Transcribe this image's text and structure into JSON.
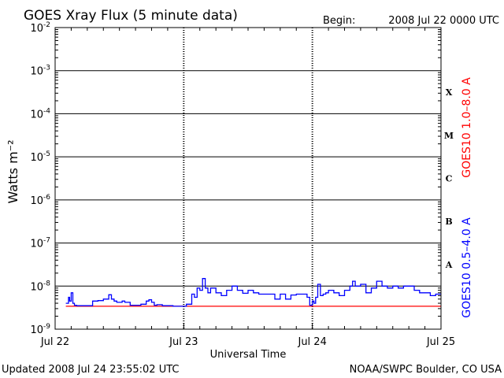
{
  "title": "GOES Xray Flux (5 minute data)",
  "begin_label": "Begin:",
  "begin_value": "2008 Jul 22 0000 UTC",
  "updated_text": "Updated 2008 Jul 24 23:55:02 UTC",
  "credit_text": "NOAA/SWPC Boulder, CO USA",
  "colors": {
    "long_channel": "#ff0000",
    "short_channel": "#0000ff",
    "axis": "#000000"
  },
  "chart_data": {
    "type": "line",
    "title": "GOES Xray Flux (5 minute data)",
    "xlabel": "Universal Time",
    "ylabel": "Watts m⁻²",
    "yscale": "log",
    "ylim": [
      1e-09,
      0.01
    ],
    "xlim": [
      0,
      72
    ],
    "x_unit": "hours since 2008 Jul 22 0000 UTC",
    "x_ticks": [
      {
        "x": 0,
        "label": "Jul 22"
      },
      {
        "x": 24,
        "label": "Jul 23"
      },
      {
        "x": 48,
        "label": "Jul 24"
      },
      {
        "x": 72,
        "label": "Jul 25"
      }
    ],
    "y_ticks": [
      {
        "exp": -2,
        "base": "10",
        "power": "-2"
      },
      {
        "exp": -3,
        "base": "10",
        "power": "-3"
      },
      {
        "exp": -4,
        "base": "10",
        "power": "-4"
      },
      {
        "exp": -5,
        "base": "10",
        "power": "-5"
      },
      {
        "exp": -6,
        "base": "10",
        "power": "-6"
      },
      {
        "exp": -7,
        "base": "10",
        "power": "-7"
      },
      {
        "exp": -8,
        "base": "10",
        "power": "-8"
      },
      {
        "exp": -9,
        "base": "10",
        "power": "-9"
      }
    ],
    "flare_classes": [
      {
        "label": "X",
        "exp": -3.5
      },
      {
        "label": "M",
        "exp": -4.5
      },
      {
        "label": "C",
        "exp": -5.5
      },
      {
        "label": "B",
        "exp": -6.5
      },
      {
        "label": "A",
        "exp": -7.5
      }
    ],
    "series": [
      {
        "name": "GOES10 1.0–8.0 A",
        "color": "#ff0000",
        "x": [
          2.0,
          72.0
        ],
        "y": [
          3.4e-09,
          3.4e-09
        ]
      },
      {
        "name": "GOES10 0.5–4.0 A",
        "color": "#0000ff",
        "x": [
          2.0,
          2.5,
          2.7,
          3.0,
          3.3,
          3.6,
          4.0,
          5.0,
          6.0,
          7.0,
          8.0,
          9.0,
          10.0,
          10.5,
          11.0,
          11.5,
          12.5,
          13.0,
          14.0,
          15.0,
          16.0,
          17.0,
          17.5,
          18.0,
          18.5,
          19.0,
          20.0,
          21.0,
          22.0,
          23.0,
          24.5,
          25.5,
          26.0,
          26.5,
          27.0,
          27.5,
          28.0,
          28.5,
          29.0,
          30.0,
          31.0,
          32.0,
          33.0,
          34.0,
          35.0,
          36.0,
          37.0,
          38.0,
          39.0,
          40.0,
          41.0,
          42.0,
          43.0,
          44.0,
          45.0,
          46.0,
          47.0,
          47.5,
          48.0,
          48.3,
          48.6,
          49.0,
          49.5,
          50.0,
          50.5,
          51.0,
          52.0,
          53.0,
          54.0,
          55.0,
          55.5,
          56.0,
          57.0,
          58.0,
          59.0,
          60.0,
          61.0,
          62.0,
          63.0,
          64.0,
          65.0,
          66.0,
          67.0,
          68.0,
          69.0,
          70.0,
          71.0,
          72.0
        ],
        "y": [
          4e-09,
          5.5e-09,
          4.5e-09,
          7e-09,
          4e-09,
          3.6e-09,
          3.5e-09,
          3.5e-09,
          3.5e-09,
          4.5e-09,
          4.6e-09,
          5e-09,
          6.3e-09,
          5e-09,
          4.5e-09,
          4.2e-09,
          4.5e-09,
          4.2e-09,
          3.6e-09,
          3.6e-09,
          3.8e-09,
          4.5e-09,
          4.8e-09,
          4.2e-09,
          3.6e-09,
          3.7e-09,
          3.5e-09,
          3.5e-09,
          3.4e-09,
          3.4e-09,
          3.8e-09,
          6.5e-09,
          5.5e-09,
          9e-09,
          8e-09,
          1.5e-08,
          9e-09,
          7e-09,
          9e-09,
          7e-09,
          6e-09,
          8e-09,
          1e-08,
          8e-09,
          6.8e-09,
          8e-09,
          7e-09,
          6.5e-09,
          6.5e-09,
          6.5e-09,
          5e-09,
          6.5e-09,
          5e-09,
          6.2e-09,
          6.5e-09,
          6.5e-09,
          5.5e-09,
          3.6e-09,
          4.5e-09,
          4e-09,
          5.5e-09,
          1.1e-08,
          6e-09,
          6.5e-09,
          7e-09,
          8e-09,
          7e-09,
          6e-09,
          8e-09,
          1e-08,
          1.3e-08,
          1e-08,
          1.1e-08,
          7e-09,
          9e-09,
          1.3e-08,
          1e-08,
          9e-09,
          1e-08,
          9e-09,
          1e-08,
          1e-08,
          8e-09,
          7e-09,
          7e-09,
          6e-09,
          6.5e-09,
          6.5e-09
        ]
      }
    ],
    "grid": true,
    "legend": "right-side vertical labels"
  }
}
